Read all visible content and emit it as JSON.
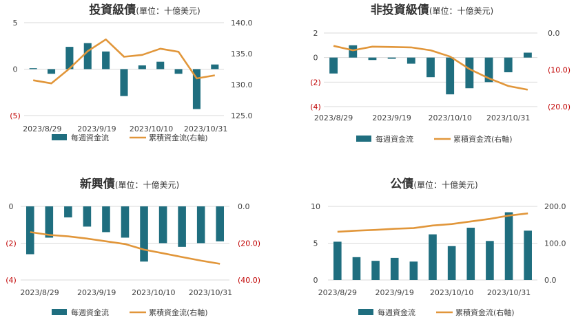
{
  "colors": {
    "bar": "#1f6e7f",
    "line": "#e1963a",
    "grid": "#d9d9d9",
    "text": "#404040",
    "negative": "#c00000"
  },
  "legend": {
    "bar_label": "每週資金流",
    "line_label": "累積資金流(右軸)"
  },
  "chart_data": [
    {
      "id": "ig",
      "type": "bar+line",
      "title": "投資級債",
      "unit": "(單位：十億美元)",
      "x_ticks": [
        "2023/8/29",
        "2023/9/19",
        "2023/10/10",
        "2023/10/31"
      ],
      "left_axis": {
        "min": -5,
        "max": 5,
        "ticks": [
          5,
          0,
          -5
        ],
        "labels": [
          "5",
          "0",
          "(5)"
        ]
      },
      "right_axis": {
        "min": 125,
        "max": 140,
        "ticks": [
          140,
          135,
          130,
          125
        ],
        "labels": [
          "140.0",
          "135.0",
          "130.0",
          "125.0"
        ]
      },
      "bar_values": [
        0.1,
        -0.5,
        2.4,
        2.8,
        1.9,
        -2.9,
        0.4,
        0.8,
        -0.5,
        -4.3,
        0.5
      ],
      "line_values": [
        130.7,
        130.2,
        132.6,
        135.4,
        137.3,
        134.5,
        134.8,
        135.8,
        135.3,
        131.0,
        131.5
      ]
    },
    {
      "id": "hy",
      "type": "bar+line",
      "title": "非投資級債",
      "unit": "(單位：十億美元)",
      "x_ticks": [
        "2023/8/29",
        "2023/9/19",
        "2023/10/10",
        "2023/10/31"
      ],
      "left_axis": {
        "min": -4,
        "max": 2,
        "ticks": [
          2,
          0,
          -2,
          -4
        ],
        "labels": [
          "2",
          "0",
          "(2)",
          "(4)"
        ]
      },
      "right_axis": {
        "min": -20,
        "max": 0,
        "ticks": [
          0,
          -10,
          -20
        ],
        "labels": [
          "0.0",
          "(10.0)",
          "(20.0)"
        ]
      },
      "bar_values": [
        -1.3,
        1.0,
        -0.2,
        -0.1,
        -0.5,
        -1.6,
        -3.0,
        -2.5,
        -2.0,
        -1.2,
        0.4
      ],
      "line_values": [
        -3.5,
        -4.7,
        -3.7,
        -3.8,
        -3.9,
        -4.7,
        -6.4,
        -9.8,
        -12.3,
        -14.4,
        -15.4
      ]
    },
    {
      "id": "em",
      "type": "bar+line",
      "title": "新興債",
      "unit": "(單位：十億美元)",
      "x_ticks": [
        "2023/8/29",
        "2023/9/19",
        "2023/10/10",
        "2023/10/31"
      ],
      "left_axis": {
        "min": -4,
        "max": 0,
        "ticks": [
          0,
          -2,
          -4
        ],
        "labels": [
          "0",
          "(2)",
          "(4)"
        ]
      },
      "right_axis": {
        "min": -40,
        "max": 0,
        "ticks": [
          0,
          -20,
          -40
        ],
        "labels": [
          "0.0",
          "(20.0)",
          "(40.0)"
        ]
      },
      "bar_values": [
        -2.6,
        -1.7,
        -0.6,
        -1.1,
        -1.4,
        -1.7,
        -3.0,
        -2.0,
        -2.2,
        -2.0,
        -1.9
      ],
      "line_values": [
        -14.0,
        -15.5,
        -16.3,
        -17.5,
        -19.0,
        -20.5,
        -23.5,
        -25.5,
        -27.5,
        -29.5,
        -31.2
      ]
    },
    {
      "id": "sov",
      "type": "bar+line",
      "title": "公債",
      "unit": "(單位：十億美元)",
      "x_ticks": [
        "2023/8/29",
        "2023/9/19",
        "2023/10/10",
        "2023/10/31"
      ],
      "left_axis": {
        "min": 0,
        "max": 10,
        "ticks": [
          10,
          5,
          0
        ],
        "labels": [
          "10",
          "5",
          "0"
        ]
      },
      "right_axis": {
        "min": 0,
        "max": 200,
        "ticks": [
          200,
          100,
          0
        ],
        "labels": [
          "200.0",
          "100.0",
          "0.0"
        ]
      },
      "bar_values": [
        5.2,
        3.1,
        2.6,
        3.0,
        2.5,
        6.2,
        4.6,
        7.1,
        5.3,
        9.2,
        6.7
      ],
      "line_values": [
        131,
        134,
        136,
        139,
        141,
        148,
        152,
        159,
        166,
        175,
        181
      ]
    }
  ]
}
